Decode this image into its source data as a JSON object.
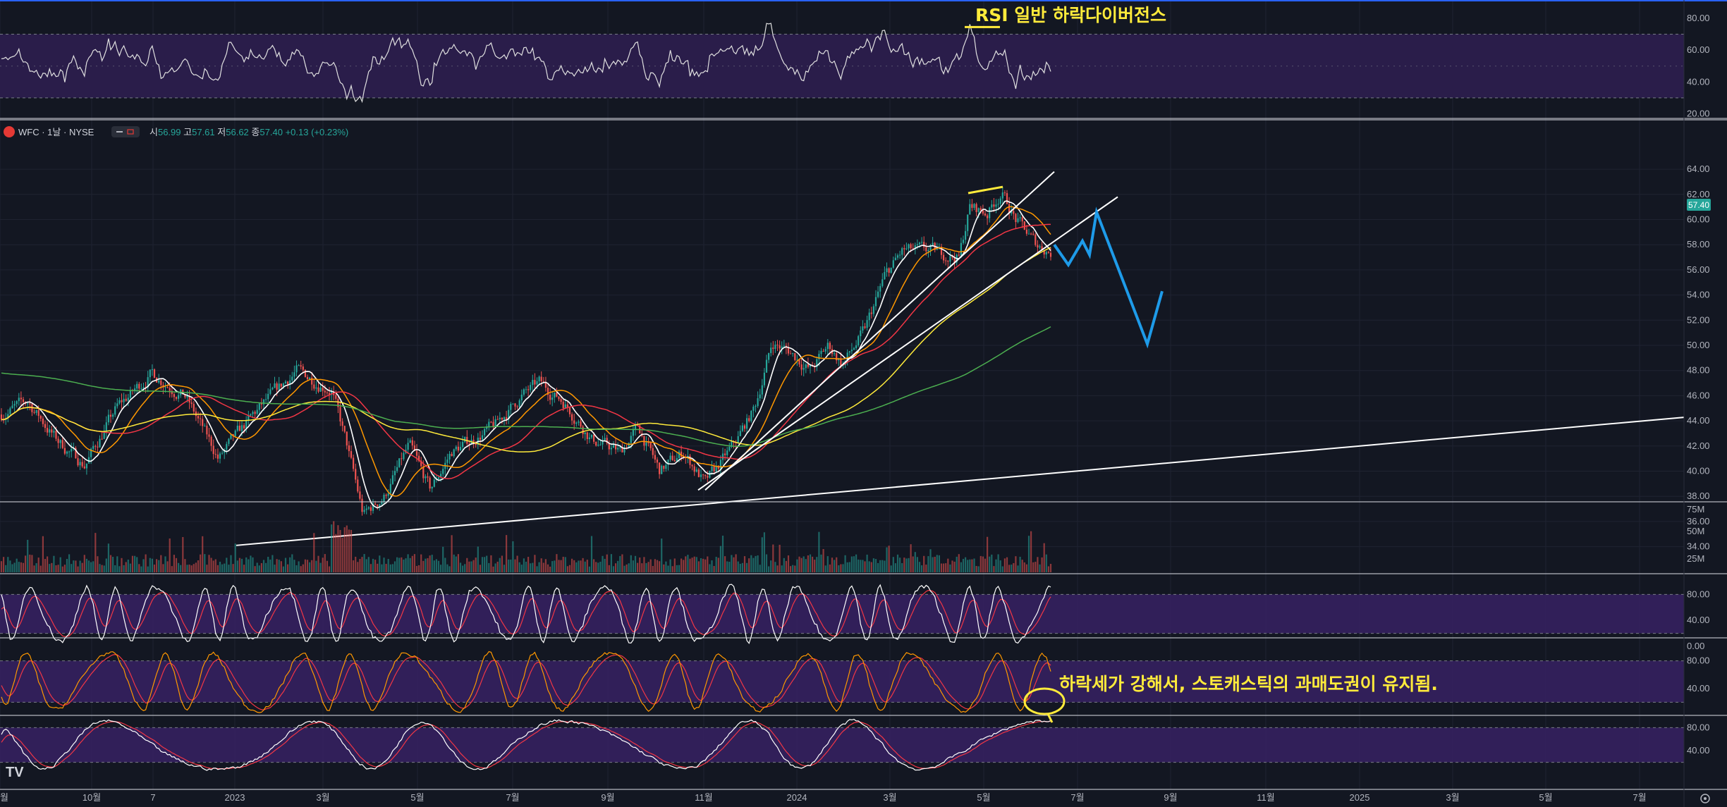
{
  "chart_data": {
    "type": "candlestick",
    "symbol": "WFC",
    "interval": "1날",
    "exchange": "NYSE",
    "legend": {
      "open_label": "시",
      "open": "56.99",
      "high_label": "고",
      "high": "57.61",
      "low_label": "저",
      "low": "56.62",
      "close_label": "종",
      "close": "57.40",
      "change": "+0.13",
      "change_pct": "(+0.23%)"
    },
    "last_price": "57.40",
    "price_axis": {
      "ylim": [
        34,
        64
      ],
      "ticks": [
        "34.00",
        "36.00",
        "38.00",
        "40.00",
        "42.00",
        "44.00",
        "46.00",
        "48.00",
        "50.00",
        "52.00",
        "54.00",
        "56.00",
        "58.00",
        "60.00",
        "62.00",
        "64.00"
      ]
    },
    "rsi_axis": {
      "ylim": [
        20,
        80
      ],
      "ticks": [
        "20.00",
        "40.00",
        "60.00",
        "80.00"
      ],
      "band": [
        30,
        70
      ]
    },
    "volume_axis": {
      "ticks": [
        "25M",
        "50M",
        "75M"
      ]
    },
    "osc_axis": {
      "ticks": [
        "0.00",
        "40.00",
        "80.00"
      ],
      "band": [
        20,
        80
      ]
    },
    "time_axis": [
      "월",
      "10월",
      "7",
      "2023",
      "3월",
      "5월",
      "7월",
      "9월",
      "11월",
      "2024",
      "3월",
      "5월",
      "7월",
      "9월",
      "11월",
      "2025",
      "3월",
      "5월",
      "7월"
    ],
    "price_keypoints": [
      [
        0,
        44.5
      ],
      [
        40,
        45.5
      ],
      [
        80,
        42.5
      ],
      [
        120,
        40.5
      ],
      [
        165,
        45.0
      ],
      [
        215,
        47.8
      ],
      [
        262,
        46.0
      ],
      [
        310,
        41.0
      ],
      [
        360,
        44.5
      ],
      [
        420,
        48.0
      ],
      [
        470,
        46.5
      ],
      [
        492,
        42.0
      ],
      [
        515,
        36.5
      ],
      [
        545,
        38.0
      ],
      [
        580,
        42.0
      ],
      [
        610,
        38.5
      ],
      [
        640,
        41.5
      ],
      [
        700,
        43.5
      ],
      [
        740,
        46.0
      ],
      [
        765,
        47.0
      ],
      [
        800,
        45.5
      ],
      [
        840,
        42.5
      ],
      [
        880,
        41.5
      ],
      [
        905,
        43.5
      ],
      [
        935,
        40.0
      ],
      [
        970,
        41.5
      ],
      [
        1000,
        39.0
      ],
      [
        1040,
        42.0
      ],
      [
        1070,
        45.0
      ],
      [
        1095,
        50.2
      ],
      [
        1120,
        49.5
      ],
      [
        1150,
        48.0
      ],
      [
        1175,
        50.0
      ],
      [
        1195,
        48.5
      ],
      [
        1225,
        51.0
      ],
      [
        1255,
        55.5
      ],
      [
        1280,
        57.5
      ],
      [
        1320,
        57.5
      ],
      [
        1360,
        57.0
      ],
      [
        1375,
        61.0
      ],
      [
        1400,
        60.5
      ],
      [
        1420,
        62.2
      ],
      [
        1440,
        60.0
      ],
      [
        1470,
        58.0
      ],
      [
        1492,
        57.4
      ]
    ],
    "trend_lines": [
      {
        "from": [
          335,
          34.1
        ],
        "to": [
          3340,
          49.0
        ]
      },
      {
        "from": [
          990,
          38.5
        ],
        "to": [
          1585,
          61.8
        ]
      },
      {
        "from": [
          1000,
          38.5
        ],
        "to": [
          1495,
          63.8
        ]
      }
    ],
    "projection_path": [
      [
        1495,
        58.0
      ],
      [
        1515,
        56.4
      ],
      [
        1535,
        58.3
      ],
      [
        1545,
        57.2
      ],
      [
        1555,
        60.6
      ],
      [
        1627,
        50.1
      ],
      [
        1648,
        54.3
      ]
    ],
    "moving_averages": [
      {
        "color": "#ffffff",
        "period": "short"
      },
      {
        "color": "#ff9800",
        "period": "medium"
      },
      {
        "color": "#f23645",
        "period": "long"
      },
      {
        "color": "#ffeb3b",
        "period": "longer"
      },
      {
        "color": "#4caf50",
        "period": "longest"
      }
    ],
    "annotations": [
      {
        "text": "RSI 일반 하락다이버전스",
        "color": "#ffeb3b"
      },
      {
        "text": "하락세가 강해서, 스토캐스틱의 과매도권이 유지됨.",
        "color": "#ffeb3b"
      }
    ],
    "colors": {
      "background": "#131722",
      "up": "#26a69a",
      "down": "#ef5350",
      "projection": "#1e9be9",
      "rsi_band": "#2a1d4a",
      "pane_band": "#3a2268"
    }
  },
  "logo_text": "TV"
}
